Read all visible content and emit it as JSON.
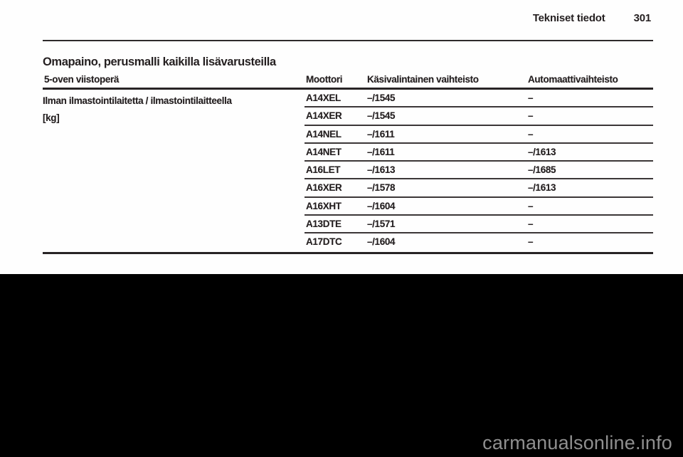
{
  "page_header": {
    "title": "Tekniset tiedot",
    "page_number": "301"
  },
  "section": {
    "title": "Omapaino, perusmalli kaikilla lisävarusteilla"
  },
  "table": {
    "columns": [
      "5-oven viistoperä",
      "Moottori",
      "Käsivalintainen vaihteisto",
      "Automaattivaihteisto"
    ],
    "row_label": {
      "line1": "Ilman ilmastointilaitetta / ilmastointilaitteella",
      "line2": "[kg]"
    },
    "rows": [
      {
        "engine": "A14XEL",
        "manual": "–/1545",
        "automatic": "–"
      },
      {
        "engine": "A14XER",
        "manual": "–/1545",
        "automatic": "–"
      },
      {
        "engine": "A14NEL",
        "manual": "–/1611",
        "automatic": "–"
      },
      {
        "engine": "A14NET",
        "manual": "–/1611",
        "automatic": "–/1613"
      },
      {
        "engine": "A16LET",
        "manual": "–/1613",
        "automatic": "–/1685"
      },
      {
        "engine": "A16XER",
        "manual": "–/1578",
        "automatic": "–/1613"
      },
      {
        "engine": "A16XHT",
        "manual": "–/1604",
        "automatic": "–"
      },
      {
        "engine": "A13DTE",
        "manual": "–/1571",
        "automatic": "–"
      },
      {
        "engine": "A17DTC",
        "manual": "–/1604",
        "automatic": "–"
      }
    ]
  },
  "watermark": {
    "text": "carmanualsonline.info"
  },
  "colors": {
    "page_background": "#fefefe",
    "outer_background": "#000000",
    "text": "#241f20",
    "border": "#282425",
    "watermark": "#8f8f8f"
  }
}
